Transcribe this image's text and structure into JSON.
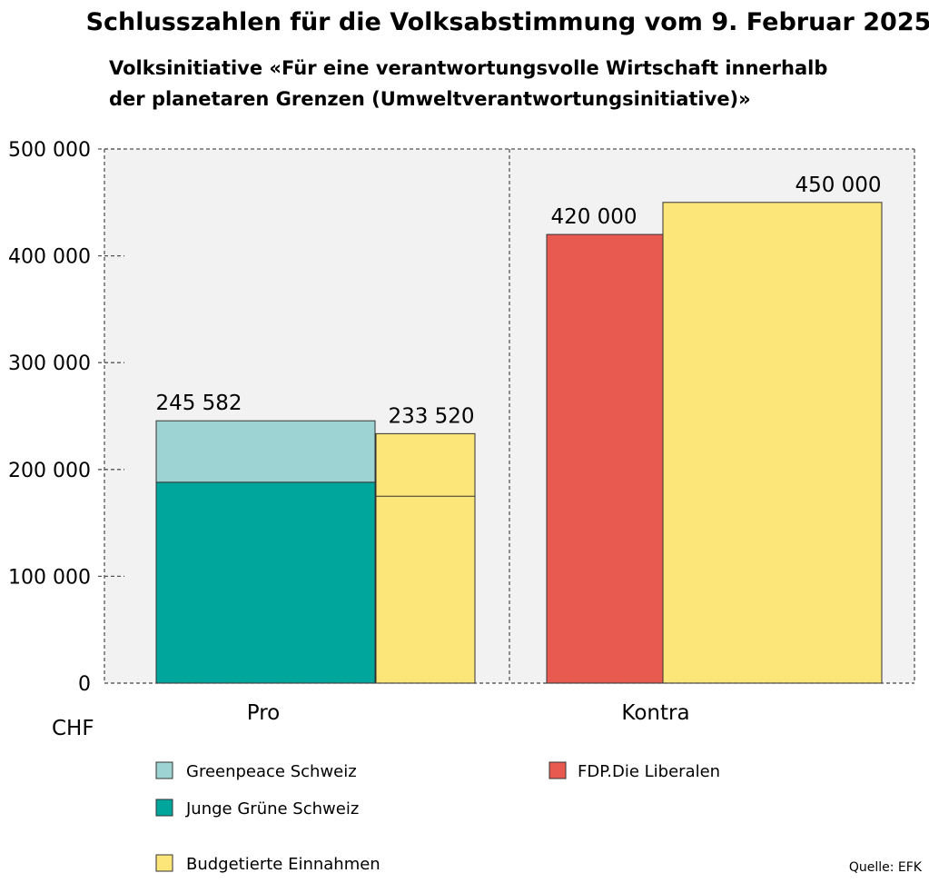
{
  "chart_data": {
    "type": "bar",
    "title": "Schlusszahlen für die Volksabstimmung vom 9. Februar 2025",
    "subtitle_lines": [
      "Volksinitiative «Für eine verantwortungsvolle Wirtschaft innerhalb",
      "der planetaren Grenzen (Umweltverantwortungsinitiative)»"
    ],
    "unit_label": "CHF",
    "ylim": [
      0,
      500000
    ],
    "yticks": [
      0,
      100000,
      200000,
      300000,
      400000,
      500000
    ],
    "ytick_labels": [
      "0",
      "100 000",
      "200 000",
      "300 000",
      "400 000",
      "500 000"
    ],
    "grid": false,
    "categories": [
      "Pro",
      "Kontra"
    ],
    "series": [
      {
        "name": "Greenpeace Schweiz",
        "color": "#9dd3d2",
        "category": "Pro",
        "stack_base": 188000,
        "value": 57582
      },
      {
        "name": "Junge Grüne Schweiz",
        "color": "#00a69c",
        "category": "Pro",
        "stack_base": 0,
        "value": 188000
      },
      {
        "name": "FDP.Die Liberalen",
        "color": "#e85a50",
        "category": "Kontra",
        "stack_base": 0,
        "value": 420000
      },
      {
        "name": "Budgetierte Einnahmen",
        "color": "#fde679",
        "category": "Pro",
        "stack_base": 0,
        "value": 233520,
        "inner_line": 175000
      },
      {
        "name": "Budgetierte Einnahmen",
        "color": "#fde679",
        "category": "Kontra",
        "stack_base": 0,
        "value": 450000
      }
    ],
    "data_labels": [
      {
        "category": "Pro",
        "text": "245 582",
        "value": 245582
      },
      {
        "category": "Pro",
        "text": "233 520",
        "value": 233520
      },
      {
        "category": "Kontra",
        "text": "420 000",
        "value": 420000
      },
      {
        "category": "Kontra",
        "text": "450 000",
        "value": 450000
      }
    ],
    "legend": {
      "placement": "bottom",
      "entries": [
        {
          "label": "Greenpeace Schweiz",
          "color": "#9dd3d2"
        },
        {
          "label": "Junge Grüne Schweiz",
          "color": "#00a69c"
        },
        {
          "label": "Budgetierte Einnahmen",
          "color": "#fde679"
        },
        {
          "label": "FDP.Die Liberalen",
          "color": "#e85a50"
        }
      ]
    },
    "source": "Quelle: EFK",
    "panel_background": "#f2f2f2"
  }
}
